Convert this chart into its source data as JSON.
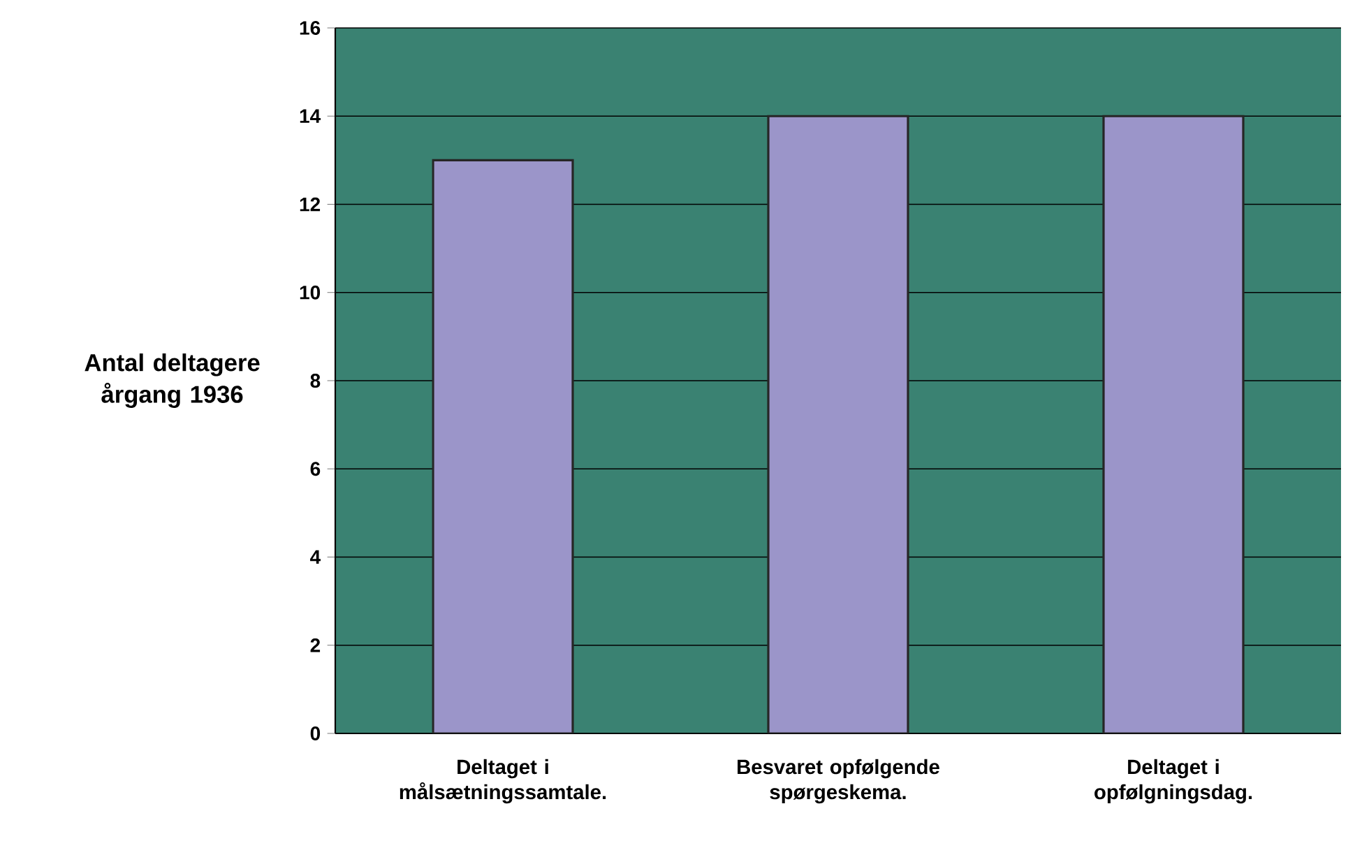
{
  "chart_data": {
    "type": "bar",
    "ylabel": "Antal deltagere årgang 1936",
    "categories": [
      "Deltaget i målsætningssamtale.",
      "Besvaret opfølgende spørgeskema.",
      "Deltaget i opfølgningsdag."
    ],
    "values": [
      13,
      14,
      14
    ],
    "color": "#9b95c9",
    "ylim": [
      0,
      16
    ],
    "yticks": [
      0,
      2,
      4,
      6,
      8,
      10,
      12,
      14,
      16
    ],
    "grid": "y"
  }
}
